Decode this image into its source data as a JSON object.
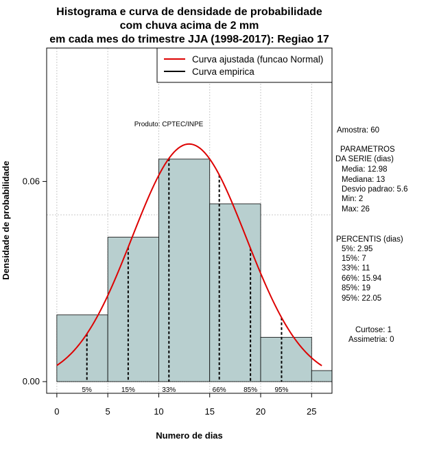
{
  "chart_data": {
    "type": "bar",
    "title_lines": [
      "Histograma e curva de densidade de probabilidade",
      "com chuva acima de 2 mm",
      "em cada mes do trimestre JJA (1998-2017): Regiao 17"
    ],
    "xlabel": "Numero de dias",
    "ylabel": "Densidade de probabilidade",
    "xlim": [
      -1,
      27
    ],
    "ylim": [
      -0.0035,
      0.1
    ],
    "x_ticks": [
      0,
      5,
      10,
      15,
      20,
      25
    ],
    "x_tick_labels": [
      "0",
      "5",
      "10",
      "15",
      "20",
      "25"
    ],
    "y_ticks": [
      0.0,
      0.06
    ],
    "y_tick_labels": [
      "0.00",
      "0.06"
    ],
    "grid_x": [
      0,
      5,
      10,
      15,
      20,
      25
    ],
    "grid_y": [
      0.05,
      0.1
    ],
    "histogram": {
      "bins": [
        {
          "x0": 0,
          "x1": 5,
          "density": 0.02
        },
        {
          "x0": 5,
          "x1": 10,
          "density": 0.0433
        },
        {
          "x0": 10,
          "x1": 15,
          "density": 0.0667
        },
        {
          "x0": 15,
          "x1": 20,
          "density": 0.0533
        },
        {
          "x0": 20,
          "x1": 25,
          "density": 0.0133
        },
        {
          "x0": 25,
          "x1": 27,
          "density": 0.0033
        }
      ],
      "fill_color": "#b8cfcf"
    },
    "normal_curve": {
      "mean": 12.98,
      "sd": 5.6,
      "x_from": 0,
      "x_to": 26,
      "color": "#dd0000"
    },
    "percentiles": [
      {
        "label": "5%",
        "value": 2.95
      },
      {
        "label": "15%",
        "value": 7
      },
      {
        "label": "33%",
        "value": 11
      },
      {
        "label": "66%",
        "value": 15.94
      },
      {
        "label": "85%",
        "value": 19
      },
      {
        "label": "95%",
        "value": 22.05
      }
    ],
    "legend": [
      {
        "label": "Curva ajustada (funcao Normal)",
        "color": "#dd0000"
      },
      {
        "label": "Curva empirica",
        "color": "#000000"
      }
    ],
    "legend_position": "top-right",
    "annotation": "Produto: CPTEC/INPE",
    "side_panel": {
      "amostra": "Amostra: 60",
      "param_header": [
        "PARAMETROS",
        "DA SERIE (dias)"
      ],
      "params": [
        "Media: 12.98",
        "Mediana: 13",
        "Desvio padrao: 5.6",
        "Min: 2",
        "Max: 26"
      ],
      "perc_header": "PERCENTIS (dias)",
      "perc_lines": [
        "5%: 2.95",
        "15%: 7",
        "33%: 11",
        "66%: 15.94",
        "85%: 19",
        "95%: 22.05"
      ],
      "extra": [
        "Curtose: 1",
        "Assimetria: 0"
      ]
    }
  }
}
